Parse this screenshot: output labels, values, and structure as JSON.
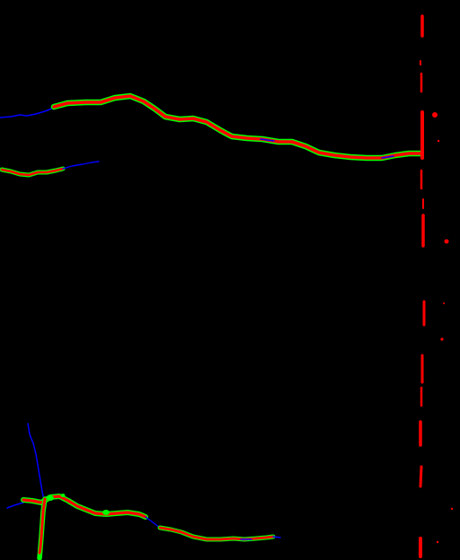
{
  "image": {
    "background_color": "#000000",
    "palette": {
      "centerline": "#0000FF",
      "crack_core": "#FF0000",
      "crack_edge": "#00FF00"
    }
  }
}
